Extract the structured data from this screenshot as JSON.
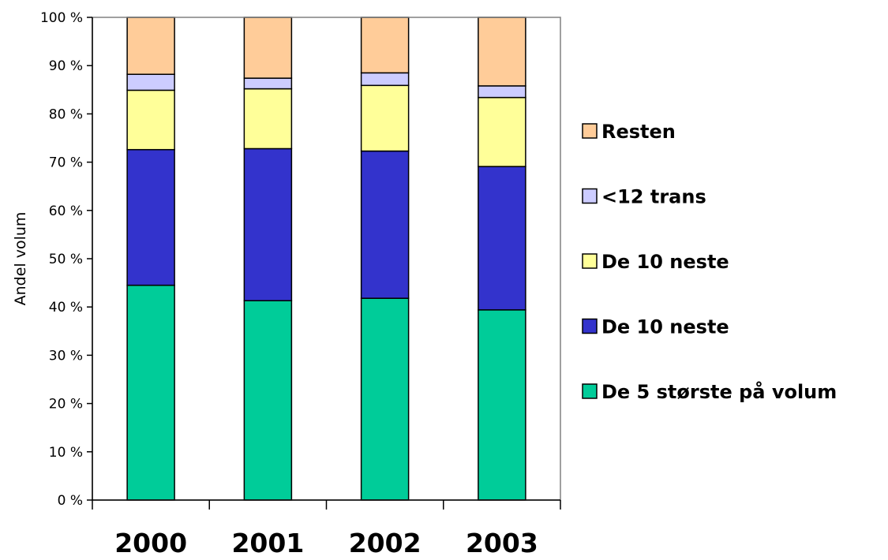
{
  "chart_data": {
    "type": "bar",
    "stacked": true,
    "categories": [
      "2000",
      "2001",
      "2002",
      "2003"
    ],
    "ylabel": "Andel volum",
    "ylim": [
      0,
      100
    ],
    "yticks": [
      "0 %",
      "10 %",
      "20 %",
      "30 %",
      "40 %",
      "50 %",
      "60 %",
      "70 %",
      "80 %",
      "90 %",
      "100 %"
    ],
    "grid": false,
    "legend_position": "right",
    "series": [
      {
        "name": "De 5 største på volum",
        "color": "#00cc99",
        "values": [
          44.5,
          41.3,
          41.8,
          39.4
        ]
      },
      {
        "name": "De 10 neste",
        "color": "#3333cc",
        "values": [
          28.1,
          31.5,
          30.5,
          29.7
        ]
      },
      {
        "name": "De 10 neste",
        "color": "#ffff99",
        "values": [
          12.3,
          12.4,
          13.6,
          14.3
        ]
      },
      {
        "name": "<12 trans",
        "color": "#ccccff",
        "values": [
          3.3,
          2.2,
          2.6,
          2.4
        ]
      },
      {
        "name": "Resten",
        "color": "#ffcc99",
        "values": [
          11.8,
          12.6,
          11.5,
          14.2
        ]
      }
    ]
  }
}
